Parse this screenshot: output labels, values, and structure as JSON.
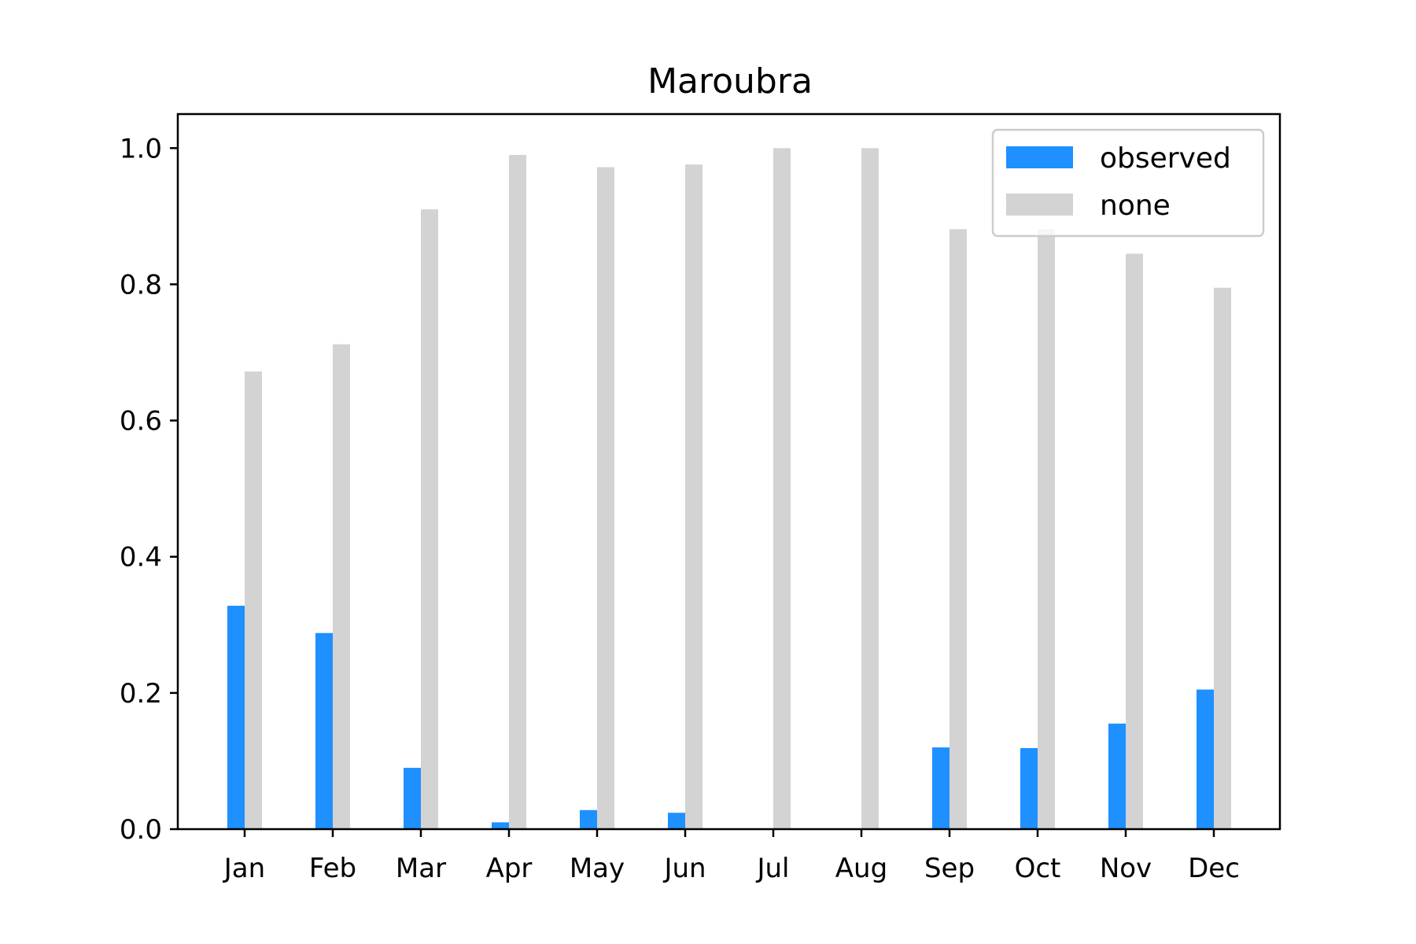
{
  "chart_data": {
    "type": "bar",
    "title": "Maroubra",
    "xlabel": "",
    "ylabel": "",
    "categories": [
      "Jan",
      "Feb",
      "Mar",
      "Apr",
      "May",
      "Jun",
      "Jul",
      "Aug",
      "Sep",
      "Oct",
      "Nov",
      "Dec"
    ],
    "series": [
      {
        "name": "observed",
        "color": "#1E90FF",
        "values": [
          0.328,
          0.288,
          0.09,
          0.01,
          0.028,
          0.024,
          0.0,
          0.0,
          0.12,
          0.119,
          0.155,
          0.205
        ]
      },
      {
        "name": "none",
        "color": "#D3D3D3",
        "values": [
          0.672,
          0.712,
          0.91,
          0.99,
          0.972,
          0.976,
          1.0,
          1.0,
          0.881,
          0.881,
          0.845,
          0.795
        ]
      }
    ],
    "ylim": [
      0,
      1.05
    ],
    "yticks": [
      "0.0",
      "0.2",
      "0.4",
      "0.6",
      "0.8",
      "1.0"
    ],
    "grid": false,
    "legend_position": "top-right"
  }
}
